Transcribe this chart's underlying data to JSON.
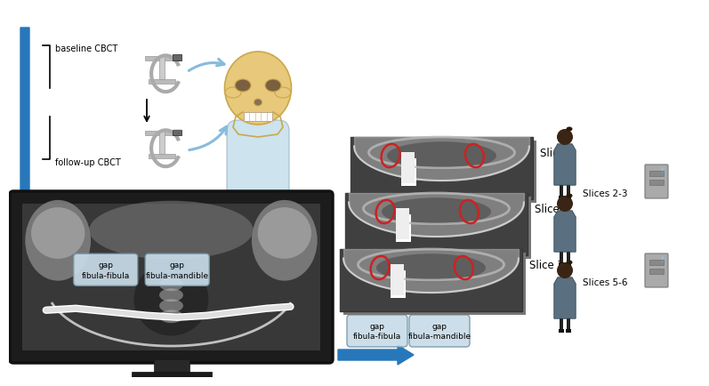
{
  "bg_color": "#ffffff",
  "blue_arrow_color": "#2777BB",
  "light_blue_arrow": "#88BBDD",
  "skull_color": "#E8C87A",
  "skull_outline": "#C9A84C",
  "body_blue": "#B8D8E8",
  "cbct_text1": "baseline CBCT",
  "cbct_text2": "follow-up CBCT",
  "slice_labels": [
    "Slice 1",
    "Slice 4",
    "Slice 7"
  ],
  "slices_between": [
    "Slices 2-3",
    "Slices 5-6"
  ],
  "gap_label1": "gap\nfibula-fibula",
  "gap_label2": "gap\nfibula-mandible",
  "red_oval": "#CC2222",
  "label_box_fill": "#C8DCE8",
  "label_box_edge": "#7799AA",
  "person_coat": "#7EA8B8",
  "person_head": "#4A3020",
  "computer_color": "#999999",
  "monitor_bezel": "#1A1A1A",
  "monitor_screen_bg": "#3A3A3A"
}
